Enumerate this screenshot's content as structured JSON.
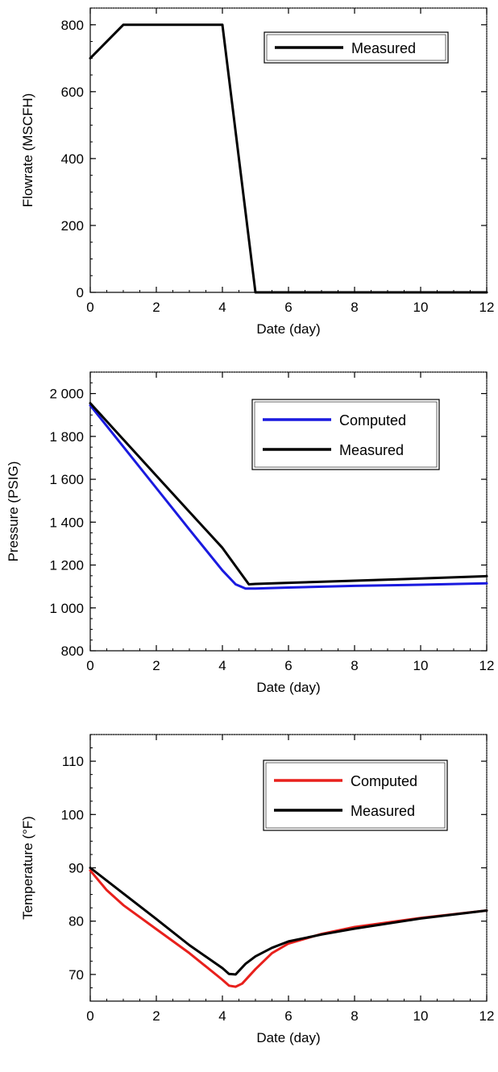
{
  "chart_data": [
    {
      "type": "line",
      "xlabel": "Date (day)",
      "ylabel": "Flowrate (MSCFH)",
      "xlim": [
        0,
        12
      ],
      "ylim": [
        0,
        850
      ],
      "xticks": [
        0,
        2,
        4,
        6,
        8,
        10,
        12
      ],
      "yticks": [
        0,
        200,
        400,
        600,
        800
      ],
      "ytick_labels": [
        "0",
        "200",
        "400",
        "600",
        "800"
      ],
      "legend_position": "top-right",
      "series": [
        {
          "name": "Measured",
          "color": "#000000",
          "x": [
            0,
            1,
            4,
            5,
            12
          ],
          "y": [
            700,
            800,
            800,
            0,
            0
          ]
        }
      ]
    },
    {
      "type": "line",
      "xlabel": "Date (day)",
      "ylabel": "Pressure (PSIG)",
      "xlim": [
        0,
        12
      ],
      "ylim": [
        800,
        2100
      ],
      "xticks": [
        0,
        2,
        4,
        6,
        8,
        10,
        12
      ],
      "yticks": [
        800,
        1000,
        1200,
        1400,
        1600,
        1800,
        2000
      ],
      "ytick_labels": [
        "800",
        "1 000",
        "1 200",
        "1 400",
        "1 600",
        "1 800",
        "2 000"
      ],
      "legend_position": "top-right",
      "series": [
        {
          "name": "Computed",
          "color": "#1a1adf",
          "x": [
            0,
            1,
            2,
            3,
            4,
            4.4,
            4.7,
            5,
            6,
            8,
            10,
            12
          ],
          "y": [
            1945,
            1752,
            1559,
            1366,
            1175,
            1110,
            1090,
            1090,
            1095,
            1103,
            1108,
            1115
          ]
        },
        {
          "name": "Measured",
          "color": "#000000",
          "x": [
            0,
            1,
            2,
            3,
            4,
            4.8,
            5,
            6,
            8,
            10,
            12
          ],
          "y": [
            1955,
            1786,
            1617,
            1448,
            1280,
            1110,
            1112,
            1117,
            1127,
            1137,
            1148
          ]
        }
      ]
    },
    {
      "type": "line",
      "xlabel": "Date (day)",
      "ylabel": "Temperature (°F)",
      "xlim": [
        0,
        12
      ],
      "ylim": [
        65,
        115
      ],
      "xticks": [
        0,
        2,
        4,
        6,
        8,
        10,
        12
      ],
      "yticks": [
        70,
        80,
        90,
        100,
        110
      ],
      "ytick_labels": [
        "70",
        "80",
        "90",
        "100",
        "110"
      ],
      "legend_position": "top-right",
      "series": [
        {
          "name": "Computed",
          "color": "#e8201c",
          "x": [
            0,
            0.5,
            1,
            2,
            3,
            4,
            4.2,
            4.4,
            4.6,
            5,
            5.5,
            6,
            7,
            8,
            10,
            12
          ],
          "y": [
            89.5,
            85.8,
            83.0,
            78.5,
            74.0,
            69.0,
            67.9,
            67.7,
            68.3,
            71.0,
            74.0,
            75.8,
            77.6,
            78.9,
            80.6,
            82.0
          ]
        },
        {
          "name": "Measured",
          "color": "#000000",
          "x": [
            0,
            1,
            2,
            3,
            4,
            4.2,
            4.4,
            4.7,
            5,
            5.5,
            6,
            7,
            8,
            10,
            12
          ],
          "y": [
            90.0,
            85.2,
            80.4,
            75.5,
            71.2,
            70.1,
            70.0,
            72.0,
            73.4,
            75.0,
            76.2,
            77.5,
            78.6,
            80.5,
            82.0
          ]
        }
      ]
    }
  ]
}
